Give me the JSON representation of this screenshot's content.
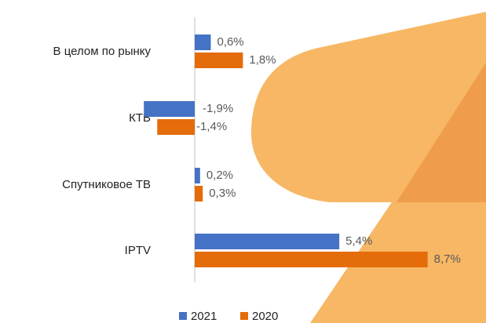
{
  "chart_data": {
    "type": "hbar",
    "categories": [
      "В целом по рынку",
      "КТВ",
      "Спутниковое ТВ",
      "IPTV"
    ],
    "series": [
      {
        "name": "2021",
        "color": "#4472c4",
        "values": [
          0.6,
          -1.9,
          0.2,
          5.4
        ],
        "value_labels": [
          "0,6%",
          "-1,9%",
          "0,2%",
          "5,4%"
        ]
      },
      {
        "name": "2020",
        "color": "#e46c0a",
        "values": [
          1.8,
          -1.4,
          0.3,
          8.7
        ],
        "value_labels": [
          "1,8%",
          "-1,4%",
          "0,3%",
          "8,7%"
        ]
      }
    ]
  }
}
